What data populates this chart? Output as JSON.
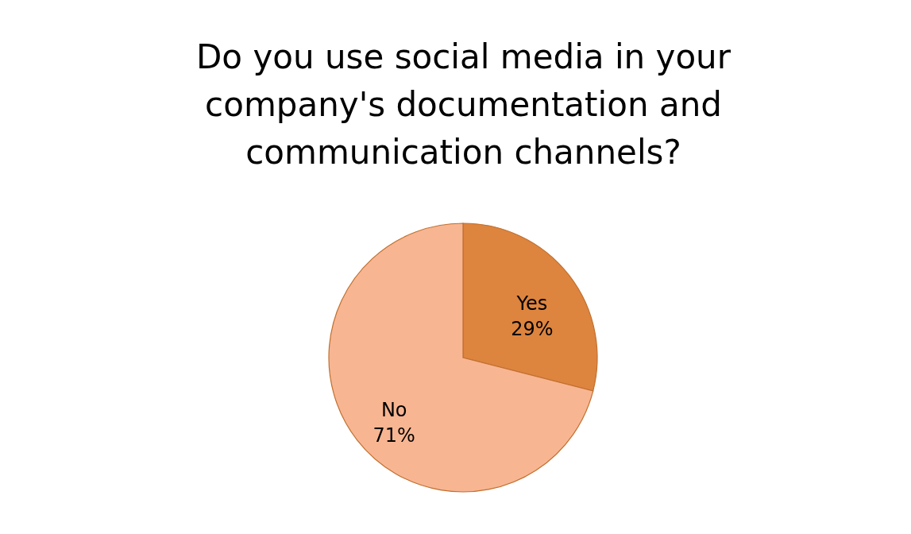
{
  "chart_data": {
    "type": "pie",
    "title": "Do you use social media in your company's documentation and communication channels?",
    "categories": [
      "Yes",
      "No"
    ],
    "values": [
      29,
      71
    ],
    "colors": [
      "#dd843f",
      "#f8b592"
    ],
    "value_labels": [
      "29%",
      "71%"
    ],
    "legend": false
  }
}
